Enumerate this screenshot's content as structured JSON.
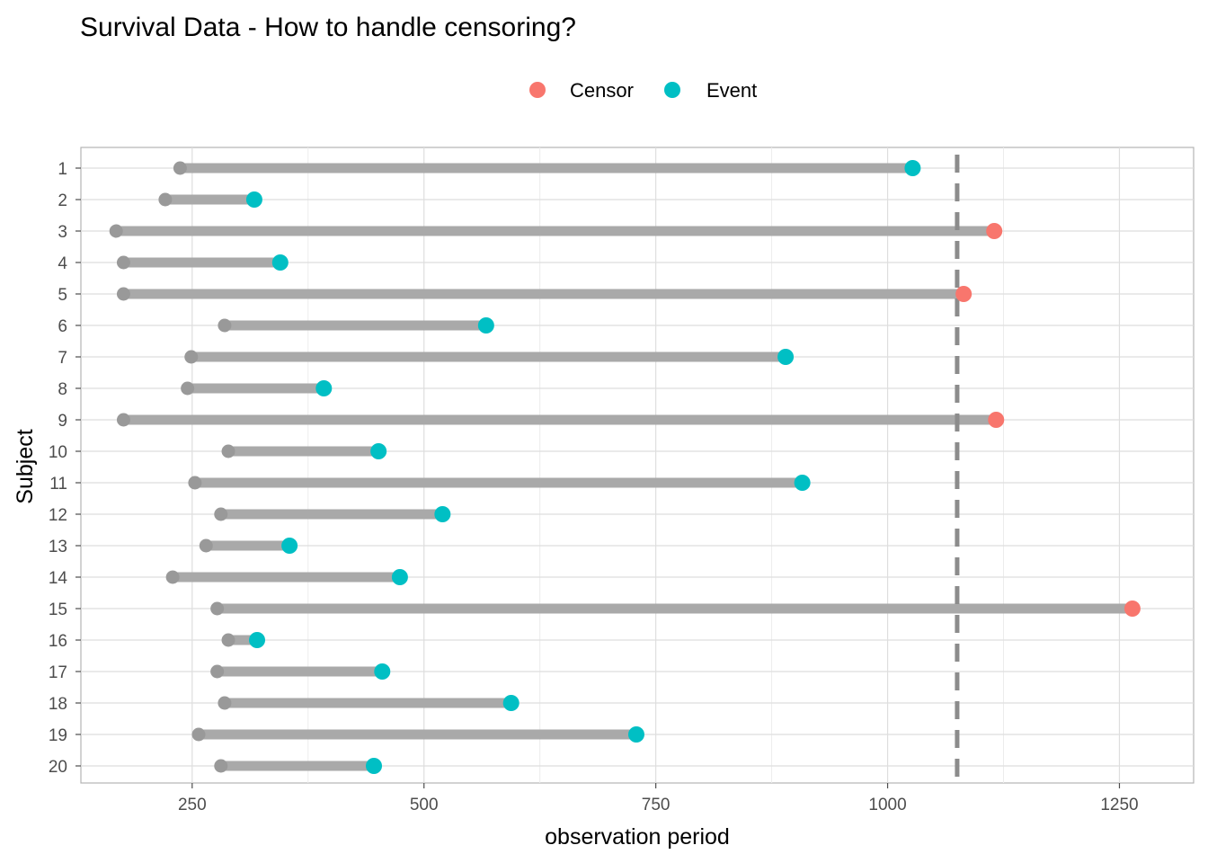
{
  "chart_data": {
    "type": "dumbbell",
    "title": "Survival Data - How to handle censoring?",
    "xlabel": "observation period",
    "ylabel": "Subject",
    "xlim": [
      130,
      1330
    ],
    "xticks": [
      250,
      500,
      750,
      1000,
      1250
    ],
    "legend": {
      "position": "top",
      "entries": [
        {
          "label": "Censor",
          "color": "#F8766D"
        },
        {
          "label": "Event",
          "color": "#00BFC4"
        }
      ]
    },
    "segment_color": "#A9A9A9",
    "start_color": "#999999",
    "reference_line": {
      "x": 1075,
      "style": "dashed",
      "color": "#8c8c8c"
    },
    "grid": true,
    "subjects": [
      {
        "subject": "1",
        "start": 237,
        "end": 1027,
        "status": "Event"
      },
      {
        "subject": "2",
        "start": 221,
        "end": 317,
        "status": "Event"
      },
      {
        "subject": "3",
        "start": 168,
        "end": 1115,
        "status": "Censor"
      },
      {
        "subject": "4",
        "start": 176,
        "end": 345,
        "status": "Event"
      },
      {
        "subject": "5",
        "start": 176,
        "end": 1082,
        "status": "Censor"
      },
      {
        "subject": "6",
        "start": 285,
        "end": 567,
        "status": "Event"
      },
      {
        "subject": "7",
        "start": 249,
        "end": 890,
        "status": "Event"
      },
      {
        "subject": "8",
        "start": 245,
        "end": 392,
        "status": "Event"
      },
      {
        "subject": "9",
        "start": 176,
        "end": 1117,
        "status": "Censor"
      },
      {
        "subject": "10",
        "start": 289,
        "end": 451,
        "status": "Event"
      },
      {
        "subject": "11",
        "start": 253,
        "end": 908,
        "status": "Event"
      },
      {
        "subject": "12",
        "start": 281,
        "end": 520,
        "status": "Event"
      },
      {
        "subject": "13",
        "start": 265,
        "end": 355,
        "status": "Event"
      },
      {
        "subject": "14",
        "start": 229,
        "end": 474,
        "status": "Event"
      },
      {
        "subject": "15",
        "start": 277,
        "end": 1264,
        "status": "Censor"
      },
      {
        "subject": "16",
        "start": 289,
        "end": 320,
        "status": "Event"
      },
      {
        "subject": "17",
        "start": 277,
        "end": 455,
        "status": "Event"
      },
      {
        "subject": "18",
        "start": 285,
        "end": 594,
        "status": "Event"
      },
      {
        "subject": "19",
        "start": 257,
        "end": 729,
        "status": "Event"
      },
      {
        "subject": "20",
        "start": 281,
        "end": 446,
        "status": "Event"
      }
    ]
  }
}
